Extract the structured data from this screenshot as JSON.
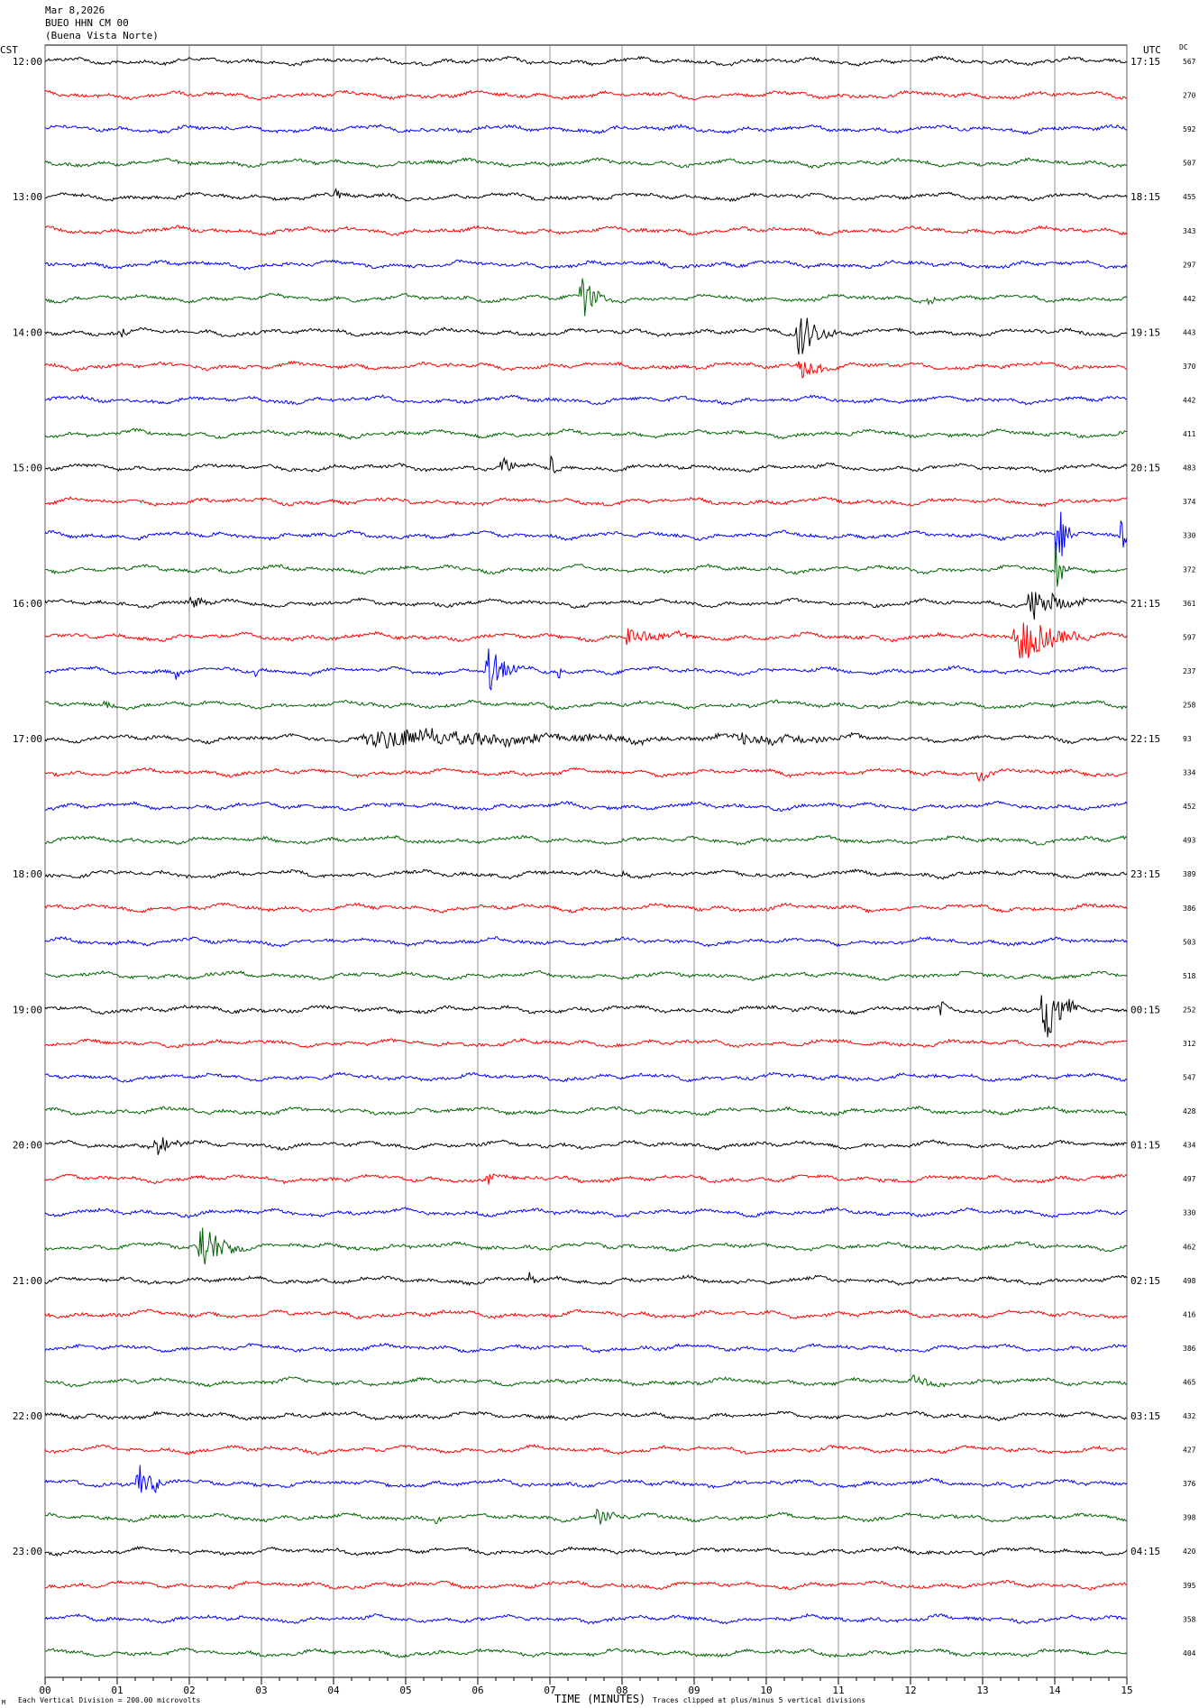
{
  "header": {
    "date": "Mar 8,2026",
    "station": "BUEO HHN CM 00",
    "location": "(Buena Vista Norte)"
  },
  "labels": {
    "left_tz": "CST",
    "right_tz": "UTC",
    "dc": "DC"
  },
  "footer": {
    "xlabel": "TIME (MINUTES)",
    "scale_note": "Each Vertical Division =  200.00 microvolts",
    "clip_note": "Traces clipped at plus/minus 5 vertical divisions",
    "corner_mark": "M"
  },
  "chart_data": {
    "type": "line",
    "x_ticks": [
      "00",
      "01",
      "02",
      "03",
      "04",
      "05",
      "06",
      "07",
      "08",
      "09",
      "10",
      "11",
      "12",
      "13",
      "14",
      "15"
    ],
    "xlim": [
      0,
      15
    ],
    "trace_colors": [
      "#000000",
      "#ff0000",
      "#0000ff",
      "#006400"
    ],
    "left_time_labels": [
      "12:00",
      "13:00",
      "14:00",
      "15:00",
      "16:00",
      "17:00",
      "18:00",
      "19:00",
      "20:00",
      "21:00",
      "22:00",
      "23:00"
    ],
    "right_time_labels": [
      "17:15",
      "18:15",
      "19:15",
      "20:15",
      "21:15",
      "22:15",
      "23:15",
      "00:15",
      "01:15",
      "02:15",
      "03:15",
      "04:15"
    ],
    "dc_values": [
      "567",
      "270",
      "592",
      "507",
      "455",
      "343",
      "297",
      "442",
      "443",
      "370",
      "442",
      "411",
      "483",
      "374",
      "330",
      "372",
      "361",
      "597",
      "237",
      "258",
      "93",
      "334",
      "452",
      "493",
      "389",
      "386",
      "503",
      "518",
      "252",
      "312",
      "547",
      "428",
      "434",
      "497",
      "330",
      "462",
      "498",
      "416",
      "386",
      "465",
      "432",
      "427",
      "376",
      "398",
      "420",
      "395",
      "358",
      "404"
    ],
    "events": [
      {
        "row": 4,
        "start": 4.0,
        "end": 4.3,
        "amp": 10
      },
      {
        "row": 7,
        "start": 7.4,
        "end": 7.8,
        "amp": 38
      },
      {
        "row": 7,
        "start": 12.2,
        "end": 12.5,
        "amp": 8
      },
      {
        "row": 8,
        "start": 1.0,
        "end": 1.2,
        "amp": 16
      },
      {
        "row": 8,
        "start": 10.4,
        "end": 11.0,
        "amp": 36
      },
      {
        "row": 9,
        "start": 10.4,
        "end": 11.2,
        "amp": 14
      },
      {
        "row": 12,
        "start": 6.3,
        "end": 6.7,
        "amp": 14
      },
      {
        "row": 12,
        "start": 7.0,
        "end": 7.2,
        "amp": 18
      },
      {
        "row": 14,
        "start": 14.0,
        "end": 14.3,
        "amp": 55
      },
      {
        "row": 14,
        "start": 14.9,
        "end": 15.0,
        "amp": 45
      },
      {
        "row": 15,
        "start": 14.0,
        "end": 14.2,
        "amp": 40
      },
      {
        "row": 16,
        "start": 2.0,
        "end": 2.4,
        "amp": 10
      },
      {
        "row": 16,
        "start": 13.6,
        "end": 14.5,
        "amp": 25
      },
      {
        "row": 17,
        "start": 13.4,
        "end": 14.5,
        "amp": 36
      },
      {
        "row": 17,
        "start": 8.0,
        "end": 9.0,
        "amp": 14
      },
      {
        "row": 18,
        "start": 6.1,
        "end": 6.6,
        "amp": 36
      },
      {
        "row": 18,
        "start": 1.8,
        "end": 1.9,
        "amp": 16
      },
      {
        "row": 18,
        "start": 2.9,
        "end": 3.0,
        "amp": 16
      },
      {
        "row": 18,
        "start": 7.1,
        "end": 7.2,
        "amp": 20
      },
      {
        "row": 19,
        "start": 0.8,
        "end": 1.0,
        "amp": 8
      },
      {
        "row": 20,
        "start": 4.3,
        "end": 9.5,
        "amp": 14
      },
      {
        "row": 20,
        "start": 9.5,
        "end": 11.5,
        "amp": 10
      },
      {
        "row": 21,
        "start": 12.9,
        "end": 13.3,
        "amp": 12
      },
      {
        "row": 24,
        "start": 8.0,
        "end": 8.1,
        "amp": 16
      },
      {
        "row": 28,
        "start": 13.8,
        "end": 14.3,
        "amp": 60
      },
      {
        "row": 28,
        "start": 12.4,
        "end": 12.6,
        "amp": 12
      },
      {
        "row": 32,
        "start": 1.5,
        "end": 1.9,
        "amp": 20
      },
      {
        "row": 33,
        "start": 6.1,
        "end": 6.4,
        "amp": 10
      },
      {
        "row": 33,
        "start": 7.8,
        "end": 8.1,
        "amp": 6
      },
      {
        "row": 35,
        "start": 2.1,
        "end": 2.8,
        "amp": 40
      },
      {
        "row": 36,
        "start": 6.7,
        "end": 6.9,
        "amp": 10
      },
      {
        "row": 39,
        "start": 12.0,
        "end": 12.6,
        "amp": 10
      },
      {
        "row": 42,
        "start": 1.2,
        "end": 1.7,
        "amp": 36
      },
      {
        "row": 43,
        "start": 5.4,
        "end": 5.5,
        "amp": 10
      },
      {
        "row": 43,
        "start": 7.6,
        "end": 8.1,
        "amp": 12
      }
    ]
  }
}
